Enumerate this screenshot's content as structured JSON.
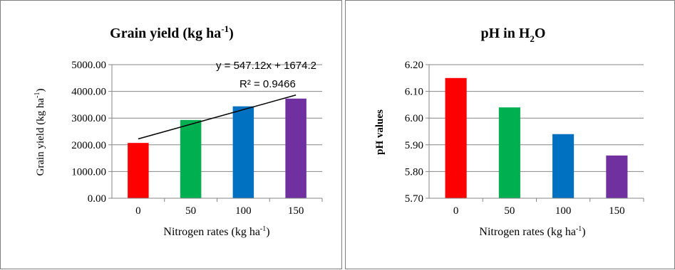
{
  "chart_data": [
    {
      "type": "bar",
      "title": "Grain yield (kg ha",
      "title_sup": "-1",
      "title_end": ")",
      "ylabel": "Grain yield (kg ha",
      "ylabel_sup": "-1",
      "ylabel_end": ")",
      "xlabel": "Nitrogen rates (kg ha",
      "xlabel_sup": "-1",
      "xlabel_end": ")",
      "categories": [
        "0",
        "50",
        "100",
        "150"
      ],
      "values": [
        2070,
        2930,
        3440,
        3730
      ],
      "colors": [
        "#ff0000",
        "#00b050",
        "#0070c0",
        "#7030a0"
      ],
      "ylim": [
        0,
        5000
      ],
      "yticks": [
        "0.00",
        "1000.00",
        "2000.00",
        "3000.00",
        "4000.00",
        "5000.00"
      ],
      "grid": true,
      "trendline": {
        "slope": 547.12,
        "intercept": 1674.2,
        "equation": "y = 547.12x + 1674.2",
        "r2": "R² = 0.9466"
      }
    },
    {
      "type": "bar",
      "title": "pH in H",
      "title_sub": "2",
      "title_end": "O",
      "ylabel": "pH values",
      "xlabel": "Nitrogen rates (kg ha",
      "xlabel_sup": "-1",
      "xlabel_end": ")",
      "categories": [
        "0",
        "50",
        "100",
        "150"
      ],
      "values": [
        6.15,
        6.04,
        5.94,
        5.86
      ],
      "colors": [
        "#ff0000",
        "#00b050",
        "#0070c0",
        "#7030a0"
      ],
      "ylim": [
        5.7,
        6.2
      ],
      "yticks": [
        "5.70",
        "5.80",
        "5.90",
        "6.00",
        "6.10",
        "6.20"
      ],
      "grid": true
    }
  ]
}
